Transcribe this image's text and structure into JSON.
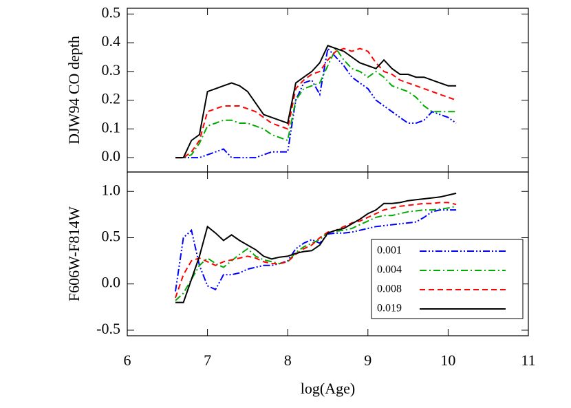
{
  "chart_data": [
    {
      "type": "line",
      "ylabel": "DJW94 CO depth",
      "x": [
        6.6,
        6.7,
        6.8,
        6.9,
        7.0,
        7.1,
        7.2,
        7.3,
        7.4,
        7.5,
        7.6,
        7.7,
        7.8,
        7.9,
        8.0,
        8.1,
        8.2,
        8.3,
        8.4,
        8.5,
        8.6,
        8.7,
        8.8,
        8.9,
        9.0,
        9.1,
        9.2,
        9.3,
        9.4,
        9.5,
        9.6,
        9.7,
        9.8,
        9.9,
        10.0,
        10.1
      ],
      "xlim": [
        6,
        11
      ],
      "xticks": [
        6,
        7,
        8,
        9,
        10,
        11
      ],
      "ylim": [
        -0.05,
        0.52
      ],
      "yticks": [
        {
          "value": 0,
          "label": "0.0"
        },
        0.1,
        0.2,
        0.3,
        0.4,
        0.5
      ],
      "series": [
        {
          "name": "0.001",
          "color": "#0000ff",
          "linestyle": "dash-dot-dot",
          "values": [
            0,
            0,
            0,
            0,
            0.01,
            0.02,
            0.03,
            0,
            0,
            0,
            0,
            0.01,
            0.02,
            0.02,
            0.02,
            0.2,
            0.26,
            0.27,
            0.22,
            0.38,
            0.35,
            0.32,
            0.28,
            0.26,
            0.24,
            0.2,
            0.18,
            0.16,
            0.14,
            0.12,
            0.12,
            0.13,
            0.16,
            0.15,
            0.14,
            0.12
          ]
        },
        {
          "name": "0.004",
          "color": "#00aa00",
          "linestyle": "dash-dot",
          "values": [
            0,
            0,
            0.01,
            0.05,
            0.11,
            0.12,
            0.13,
            0.13,
            0.12,
            0.12,
            0.11,
            0.1,
            0.08,
            0.07,
            0.06,
            0.2,
            0.24,
            0.25,
            0.26,
            0.32,
            0.38,
            0.34,
            0.31,
            0.3,
            0.28,
            0.3,
            0.28,
            0.25,
            0.24,
            0.23,
            0.21,
            0.18,
            0.16,
            0.16,
            0.16,
            0.16
          ]
        },
        {
          "name": "0.008",
          "color": "#ff0000",
          "linestyle": "dash",
          "values": [
            0,
            0,
            0.02,
            0.06,
            0.16,
            0.17,
            0.18,
            0.18,
            0.18,
            0.17,
            0.16,
            0.14,
            0.12,
            0.11,
            0.1,
            0.24,
            0.27,
            0.29,
            0.3,
            0.34,
            0.37,
            0.38,
            0.37,
            0.38,
            0.37,
            0.33,
            0.3,
            0.29,
            0.27,
            0.26,
            0.25,
            0.24,
            0.23,
            0.22,
            0.21,
            0.2
          ]
        },
        {
          "name": "0.019",
          "color": "#000000",
          "linestyle": "solid",
          "values": [
            0,
            0,
            0.06,
            0.08,
            0.23,
            0.24,
            0.25,
            0.26,
            0.25,
            0.23,
            0.19,
            0.15,
            0.14,
            0.13,
            0.12,
            0.26,
            0.28,
            0.3,
            0.33,
            0.39,
            0.38,
            0.37,
            0.35,
            0.33,
            0.32,
            0.31,
            0.34,
            0.31,
            0.29,
            0.29,
            0.28,
            0.28,
            0.27,
            0.26,
            0.25,
            0.25
          ]
        }
      ]
    },
    {
      "type": "line",
      "ylabel": "F606W-F814W",
      "xlabel": "log(Age)",
      "x": [
        6.6,
        6.7,
        6.8,
        6.9,
        7.0,
        7.1,
        7.2,
        7.3,
        7.4,
        7.5,
        7.6,
        7.7,
        7.8,
        7.9,
        8.0,
        8.1,
        8.2,
        8.3,
        8.4,
        8.5,
        8.6,
        8.7,
        8.8,
        8.9,
        9.0,
        9.1,
        9.2,
        9.3,
        9.4,
        9.5,
        9.6,
        9.7,
        9.8,
        9.9,
        10.0,
        10.1
      ],
      "xlim": [
        6,
        11
      ],
      "xticks": [
        6,
        7,
        8,
        9,
        10,
        11
      ],
      "ylim": [
        -0.56,
        1.21
      ],
      "yticks": [
        -0.5,
        {
          "value": 0,
          "label": "0.0"
        },
        0.5,
        {
          "value": 1,
          "label": "1.0"
        }
      ],
      "legend": "lower right",
      "series": [
        {
          "name": "0.001",
          "color": "#0000ff",
          "linestyle": "dash-dot-dot",
          "values": [
            -0.08,
            0.5,
            0.58,
            0.2,
            -0.02,
            -0.06,
            0.1,
            0.1,
            0.12,
            0.16,
            0.18,
            0.2,
            0.2,
            0.22,
            0.25,
            0.38,
            0.44,
            0.48,
            0.44,
            0.54,
            0.55,
            0.55,
            0.56,
            0.58,
            0.6,
            0.62,
            0.63,
            0.64,
            0.65,
            0.66,
            0.67,
            0.72,
            0.78,
            0.8,
            0.8,
            0.8
          ]
        },
        {
          "name": "0.004",
          "color": "#00aa00",
          "linestyle": "dash-dot",
          "values": [
            -0.18,
            -0.1,
            0.05,
            0.2,
            0.28,
            0.22,
            0.18,
            0.25,
            0.32,
            0.38,
            0.3,
            0.26,
            0.24,
            0.22,
            0.24,
            0.34,
            0.4,
            0.44,
            0.48,
            0.56,
            0.57,
            0.58,
            0.6,
            0.64,
            0.68,
            0.72,
            0.74,
            0.74,
            0.76,
            0.78,
            0.79,
            0.8,
            0.8,
            0.81,
            0.82,
            0.84
          ]
        },
        {
          "name": "0.008",
          "color": "#ff0000",
          "linestyle": "dash",
          "values": [
            -0.15,
            0.1,
            0.25,
            0.28,
            0.24,
            0.2,
            0.24,
            0.26,
            0.28,
            0.3,
            0.28,
            0.24,
            0.22,
            0.22,
            0.24,
            0.32,
            0.38,
            0.42,
            0.5,
            0.56,
            0.58,
            0.62,
            0.66,
            0.68,
            0.72,
            0.76,
            0.8,
            0.82,
            0.84,
            0.85,
            0.86,
            0.87,
            0.87,
            0.88,
            0.88,
            0.86
          ]
        },
        {
          "name": "0.019",
          "color": "#000000",
          "linestyle": "solid",
          "values": [
            -0.2,
            -0.2,
            0.05,
            0.3,
            0.62,
            0.55,
            0.47,
            0.53,
            0.47,
            0.42,
            0.37,
            0.3,
            0.27,
            0.29,
            0.3,
            0.33,
            0.35,
            0.36,
            0.42,
            0.55,
            0.58,
            0.6,
            0.65,
            0.7,
            0.76,
            0.8,
            0.87,
            0.87,
            0.88,
            0.9,
            0.91,
            0.92,
            0.93,
            0.94,
            0.96,
            0.98
          ]
        }
      ]
    }
  ]
}
